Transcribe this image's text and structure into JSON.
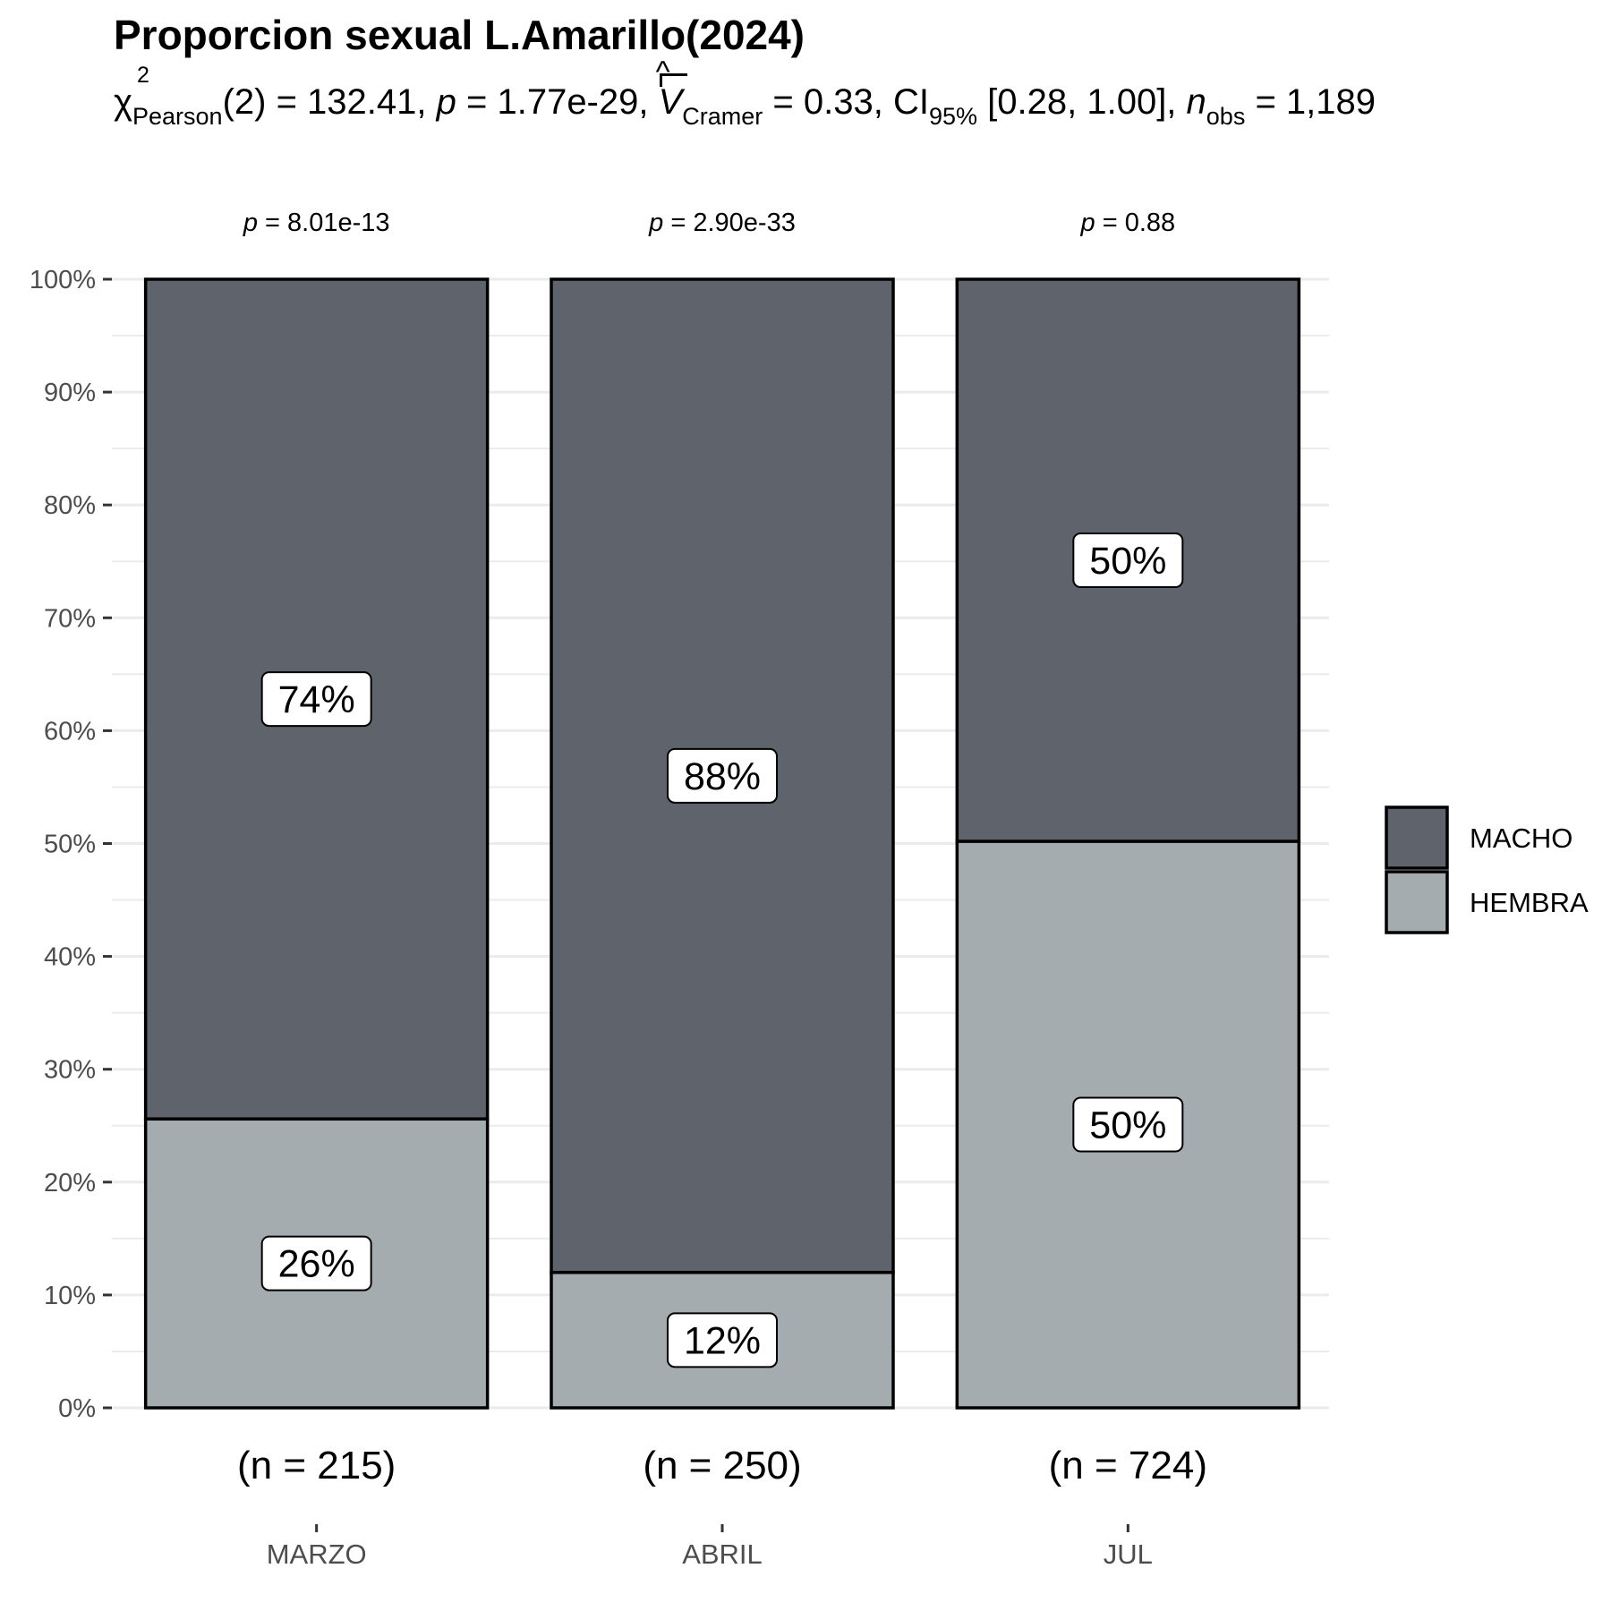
{
  "chart_data": {
    "type": "bar",
    "stacked": true,
    "percent": true,
    "title": "Proporcion sexual L.Amarillo(2024)",
    "subtitle": {
      "chi_symbol": "χ",
      "chi_sup": "2",
      "chi_sub": "Pearson",
      "df": "(2) = 132.41, ",
      "p_label": "p",
      "p_value": " = 1.77e-29, ",
      "v_label": "V",
      "v_sub": "Cramer",
      "v_value": " = 0.33, CI",
      "ci_sub": "95%",
      "ci_value": " [0.28, 1.00], ",
      "n_label": "n",
      "n_sub": "obs",
      "n_value": " = 1,189"
    },
    "categories": [
      "MARZO",
      "ABRIL",
      "JUL"
    ],
    "n_labels": [
      "(n = 215)",
      "(n = 250)",
      "(n = 724)"
    ],
    "p_labels": [
      "= 8.01e-13",
      "= 2.90e-33",
      "= 0.88"
    ],
    "p_symbol": "p",
    "series": [
      {
        "name": "HEMBRA",
        "values": [
          25.6,
          12.0,
          50.2
        ],
        "labels": [
          "26%",
          "12%",
          "50%"
        ],
        "color": "#a5acaf"
      },
      {
        "name": "MACHO",
        "values": [
          74.4,
          88.0,
          49.8
        ],
        "labels": [
          "74%",
          "88%",
          "50%"
        ],
        "color": "#5f636b"
      }
    ],
    "legend": {
      "placement": "right",
      "entries": [
        "MACHO",
        "HEMBRA"
      ]
    },
    "yticks": [
      "0%",
      "10%",
      "20%",
      "30%",
      "40%",
      "50%",
      "60%",
      "70%",
      "80%",
      "90%",
      "100%"
    ],
    "ylim": [
      0,
      100
    ],
    "grid": true,
    "xlabel": "",
    "ylabel": ""
  }
}
